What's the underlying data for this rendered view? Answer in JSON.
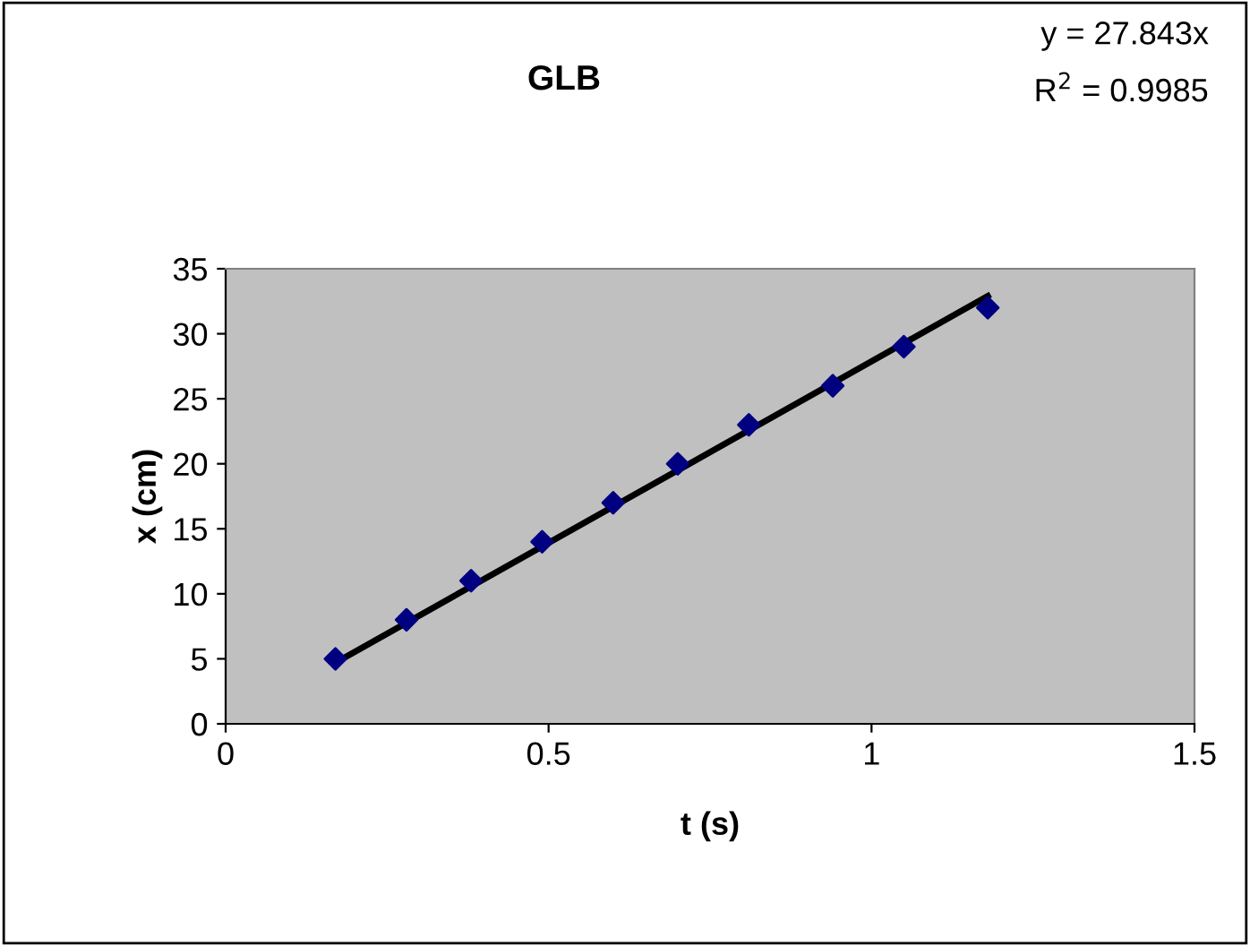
{
  "chart_data": {
    "type": "scatter",
    "title": "GLB",
    "xlabel": "t (s)",
    "ylabel": "x (cm)",
    "annotations": [
      "y = 27.843x",
      "R$^{2}$ = 0.9985"
    ],
    "series": [
      {
        "type": "scatter",
        "color": "#000080",
        "marker": "diamond",
        "x": [
          0.17,
          0.28,
          0.38,
          0.49,
          0.6,
          0.7,
          0.81,
          0.94,
          1.05,
          1.18
        ],
        "values": [
          5,
          8,
          11,
          14,
          17,
          20,
          23,
          26,
          29,
          32
        ]
      },
      {
        "type": "line",
        "color": "#000000",
        "marker": "none",
        "line_style": "solid",
        "x": [
          0.17,
          1.18
        ],
        "values": [
          4.7,
          32.9
        ]
      }
    ],
    "xlim": [
      0,
      1.5
    ],
    "xticks": [
      0,
      0.5,
      1,
      1.5
    ],
    "ylim": [
      0,
      35
    ],
    "yticks": [
      0,
      5,
      10,
      15,
      20,
      25,
      30,
      35
    ],
    "grid": false,
    "legend": false
  }
}
